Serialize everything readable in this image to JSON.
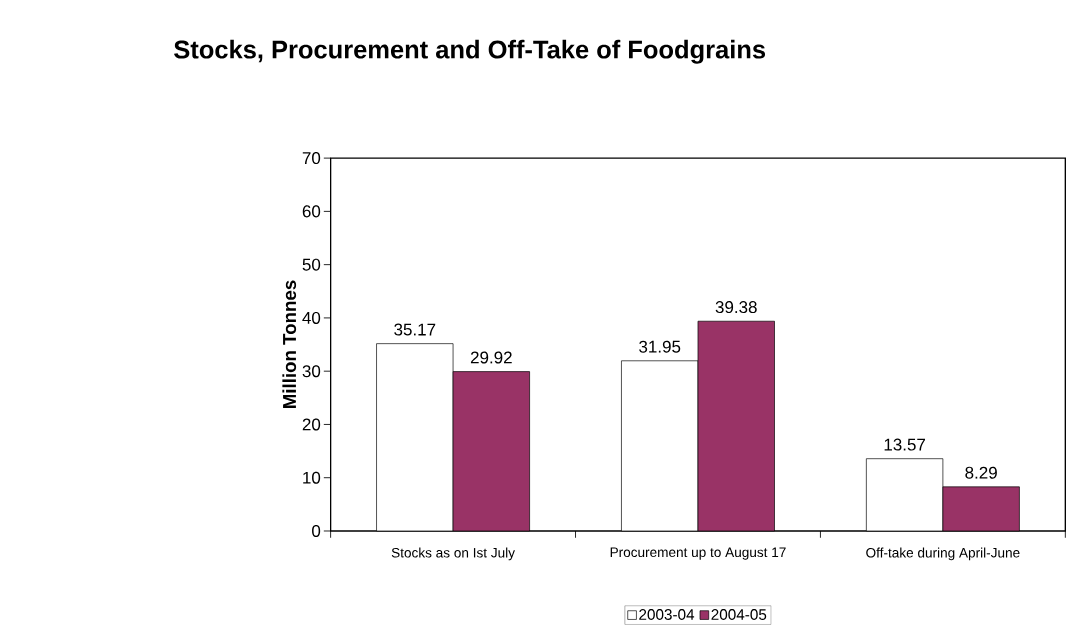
{
  "chart_data": {
    "type": "bar",
    "title": "Stocks, Procurement and Off-Take of Foodgrains",
    "ylabel": "Million Tonnes",
    "categories": [
      "Stocks as on Ist July",
      "Procurement up to August 17",
      "Off-take during April-June"
    ],
    "series": [
      {
        "name": "2003-04",
        "color": "#ffffff",
        "values": [
          35.17,
          31.95,
          13.57
        ]
      },
      {
        "name": "2004-05",
        "color": "#993366",
        "values": [
          29.92,
          39.38,
          8.29
        ]
      }
    ],
    "ylim": [
      0,
      70
    ],
    "yticks": [
      0,
      10,
      20,
      30,
      40,
      50,
      60,
      70
    ],
    "data_labels": true,
    "legend": "bottom"
  }
}
